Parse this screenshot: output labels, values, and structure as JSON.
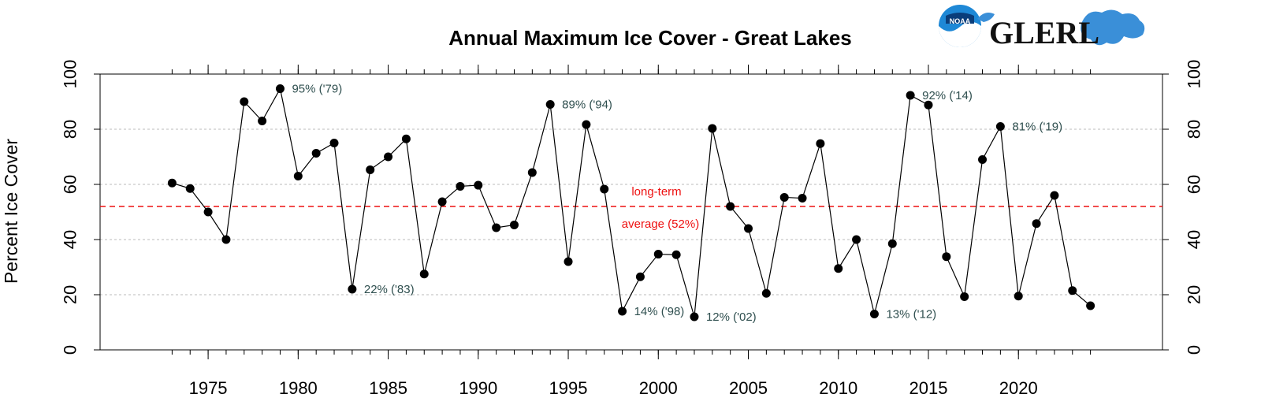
{
  "chart_data": {
    "type": "line",
    "title": "Annual Maximum Ice Cover - Great Lakes",
    "xlabel": "",
    "ylabel": "Percent Ice Cover",
    "xlim": [
      1969,
      2028
    ],
    "ylim": [
      0,
      100
    ],
    "x_ticks": [
      1975,
      1980,
      1985,
      1990,
      1995,
      2000,
      2005,
      2010,
      2015,
      2020
    ],
    "y_ticks": [
      0,
      20,
      40,
      60,
      80,
      100
    ],
    "grid": "horizontal dashed",
    "series": [
      {
        "name": "Annual Maximum Ice Cover",
        "x": [
          1973,
          1974,
          1975,
          1976,
          1977,
          1978,
          1979,
          1980,
          1981,
          1982,
          1983,
          1984,
          1985,
          1986,
          1987,
          1988,
          1989,
          1990,
          1991,
          1992,
          1993,
          1994,
          1995,
          1996,
          1997,
          1998,
          1999,
          2000,
          2001,
          2002,
          2003,
          2004,
          2005,
          2006,
          2007,
          2008,
          2009,
          2010,
          2011,
          2012,
          2013,
          2014,
          2015,
          2016,
          2017,
          2018,
          2019,
          2020,
          2021,
          2022,
          2023,
          2024
        ],
        "values": [
          60.5,
          58.5,
          50,
          40,
          90,
          83,
          94.7,
          63,
          71.3,
          75,
          22,
          65.3,
          70,
          76.5,
          27.5,
          53.7,
          59.3,
          59.7,
          44.3,
          45.3,
          64.3,
          89,
          32,
          81.7,
          58.3,
          14,
          26.5,
          34.7,
          34.5,
          12,
          80.3,
          52,
          44,
          20.5,
          55.3,
          55,
          74.8,
          29.5,
          40,
          13,
          38.5,
          92.3,
          88.8,
          33.8,
          19.3,
          69,
          81,
          19.5,
          45.8,
          56,
          21.5,
          16
        ]
      }
    ],
    "reference_line": {
      "value": 52,
      "color": "#ee1111",
      "label_line1": "long-term",
      "label_line2": "average (52%)"
    },
    "annotations": [
      {
        "x": 1979,
        "y": 94.7,
        "text": "95% ('79)"
      },
      {
        "x": 1983,
        "y": 22,
        "text": "22% ('83)"
      },
      {
        "x": 1994,
        "y": 89,
        "text": "89% ('94)"
      },
      {
        "x": 1998,
        "y": 14,
        "text": "14% ('98)"
      },
      {
        "x": 2002,
        "y": 12,
        "text": "12% ('02)"
      },
      {
        "x": 2012,
        "y": 13,
        "text": "13% ('12)"
      },
      {
        "x": 2014,
        "y": 92.3,
        "text": "92% ('14)"
      },
      {
        "x": 2019,
        "y": 81,
        "text": "81% ('19)"
      }
    ]
  },
  "branding": {
    "noaa_text": "NOAA",
    "glerl_text": "GLERL"
  },
  "colors": {
    "point": "#000000",
    "line": "#000000",
    "grid": "#bbbbbb",
    "average": "#ee1111",
    "annotation": "#2f4f4f",
    "noaa_blue": "#1e88d6",
    "noaa_dark": "#0a3d7a",
    "lakes_blue": "#3a8fd8"
  }
}
